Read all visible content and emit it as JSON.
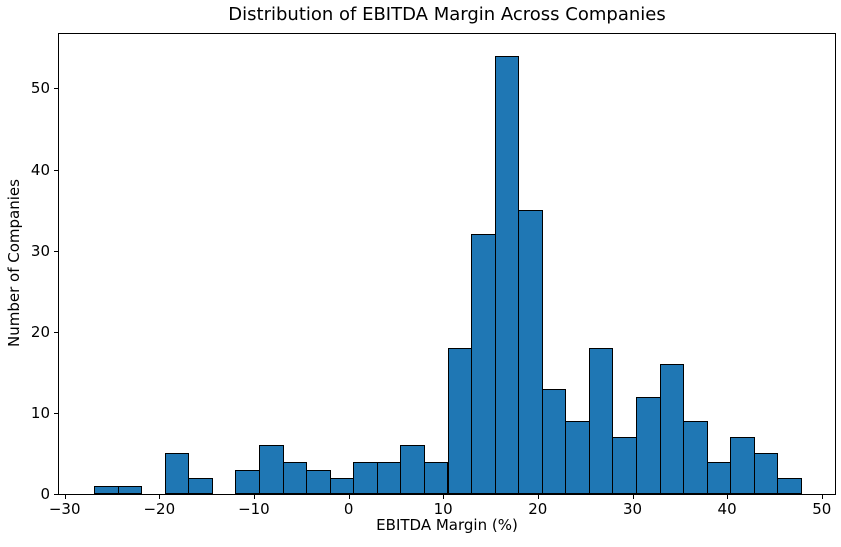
{
  "chart_data": {
    "type": "bar",
    "subtype": "histogram",
    "title": "Distribution of EBITDA Margin Across Companies",
    "xlabel": "EBITDA Margin (%)",
    "ylabel": "Number of Companies",
    "bin_start": -26.9,
    "bin_width": 2.49,
    "counts": [
      1,
      1,
      0,
      5,
      2,
      0,
      3,
      6,
      4,
      3,
      2,
      4,
      4,
      6,
      4,
      18,
      32,
      54,
      35,
      13,
      9,
      18,
      7,
      12,
      16,
      9,
      4,
      7,
      5,
      2
    ],
    "x_ticks": [
      {
        "value": -30,
        "label": "−30"
      },
      {
        "value": -20,
        "label": "−20"
      },
      {
        "value": -10,
        "label": "−10"
      },
      {
        "value": 0,
        "label": "0"
      },
      {
        "value": 10,
        "label": "10"
      },
      {
        "value": 20,
        "label": "20"
      },
      {
        "value": 30,
        "label": "30"
      },
      {
        "value": 40,
        "label": "40"
      },
      {
        "value": 50,
        "label": "50"
      }
    ],
    "y_ticks": [
      {
        "value": 0,
        "label": "0"
      },
      {
        "value": 10,
        "label": "10"
      },
      {
        "value": 20,
        "label": "20"
      },
      {
        "value": 30,
        "label": "30"
      },
      {
        "value": 40,
        "label": "40"
      },
      {
        "value": 50,
        "label": "50"
      }
    ],
    "xlim": [
      -30.6,
      51.4
    ],
    "ylim": [
      0,
      56.7
    ],
    "bar_color": "#1f77b4",
    "bar_edge_color": "#000000",
    "grid": false,
    "legend": null
  }
}
